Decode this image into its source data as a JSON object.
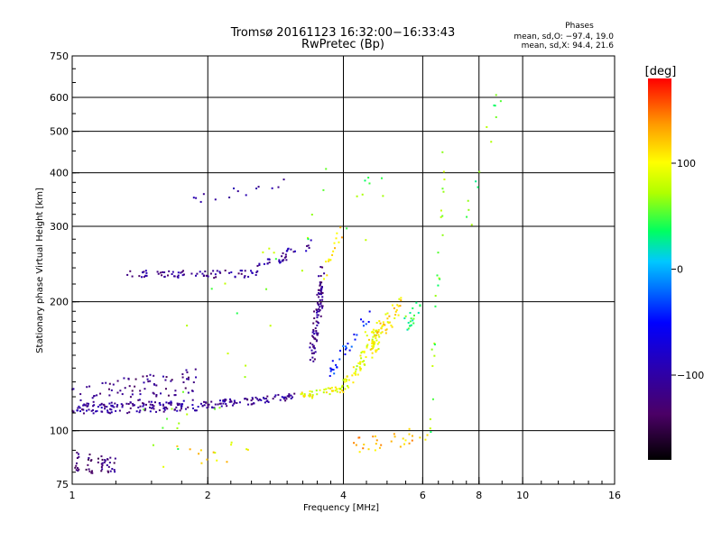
{
  "chart_data": {
    "type": "scatter",
    "title": "Tromsø 20161123 16:32:00−16:33:43",
    "subtitle": "RwPretec (Bp)",
    "phases": {
      "title": "Phases",
      "line_o": "mean, sd,O: −97.4, 19.0",
      "line_x": "mean, sd,X:  94.4, 21.6"
    },
    "xlabel": "Frequency [MHz]",
    "ylabel": "Stationary phase Virtual Height [km]",
    "x_scale": "log2",
    "y_scale": "log",
    "xlim": [
      1,
      16
    ],
    "ylim": [
      75,
      750
    ],
    "x_ticks": [
      1,
      2,
      4,
      6,
      8,
      10,
      16
    ],
    "x_tick_labels": [
      "1",
      "2",
      "4",
      "6",
      "8",
      "10",
      "16"
    ],
    "x_grid": [
      2,
      4,
      6,
      8,
      10
    ],
    "y_ticks": [
      75,
      100,
      200,
      300,
      400,
      500,
      600,
      750
    ],
    "y_tick_labels": [
      "75",
      "100",
      "200",
      "300",
      "400",
      "500",
      "600",
      "750"
    ],
    "y_grid": [
      100,
      200,
      300,
      400,
      500,
      600
    ],
    "grid": true,
    "colorbar": {
      "label": "[deg]",
      "range": [
        -180,
        180
      ],
      "ticks": [
        100,
        0,
        -100
      ],
      "tick_labels": [
        "100",
        "0",
        "−100"
      ]
    },
    "traces": [
      {
        "name": "",
        "from": [
          1.0,
          112
        ],
        "to": [
          2.0,
          115
        ],
        "spread": 0.03,
        "n": 140,
        "phase": -110
      },
      {
        "name": "",
        "from": [
          2.0,
          115
        ],
        "to": [
          3.1,
          120
        ],
        "spread": 0.02,
        "n": 80,
        "phase": -108
      },
      {
        "name": "",
        "from": [
          1.0,
          118
        ],
        "to": [
          1.9,
          132
        ],
        "spread": 0.07,
        "n": 90,
        "phase": -118
      },
      {
        "name": "",
        "from": [
          1.0,
          85
        ],
        "to": [
          1.25,
          82
        ],
        "spread": 0.05,
        "n": 50,
        "phase": -125
      },
      {
        "name": "",
        "from": [
          1.3,
          232
        ],
        "to": [
          2.5,
          232
        ],
        "spread": 0.02,
        "n": 70,
        "phase": -112
      },
      {
        "name": "",
        "from": [
          2.5,
          235
        ],
        "to": [
          3.4,
          275
        ],
        "spread": 0.03,
        "n": 40,
        "phase": -105
      },
      {
        "name": "",
        "from": [
          1.8,
          340
        ],
        "to": [
          3.0,
          385
        ],
        "spread": 0.03,
        "n": 14,
        "phase": -100
      },
      {
        "name": "",
        "from": [
          3.4,
          150
        ],
        "to": [
          3.6,
          230
        ],
        "spread": 0.09,
        "n": 90,
        "phase": -118
      },
      {
        "name": "",
        "from": [
          3.2,
          120
        ],
        "to": [
          4.0,
          125
        ],
        "spread": 0.02,
        "n": 45,
        "phase": 95
      },
      {
        "name": "",
        "from": [
          4.0,
          125
        ],
        "to": [
          4.8,
          165
        ],
        "spread": 0.05,
        "n": 70,
        "phase": 92
      },
      {
        "name": "",
        "from": [
          4.5,
          160
        ],
        "to": [
          5.4,
          195
        ],
        "spread": 0.06,
        "n": 60,
        "phase": 110
      },
      {
        "name": "",
        "from": [
          5.5,
          178
        ],
        "to": [
          5.9,
          195
        ],
        "spread": 0.04,
        "n": 20,
        "phase": 40
      },
      {
        "name": "",
        "from": [
          3.6,
          230
        ],
        "to": [
          4.0,
          300
        ],
        "spread": 0.05,
        "n": 16,
        "phase": 115
      },
      {
        "name": "",
        "from": [
          3.7,
          135
        ],
        "to": [
          4.6,
          190
        ],
        "spread": 0.05,
        "n": 30,
        "phase": -45
      },
      {
        "name": "",
        "from": [
          4.2,
          92
        ],
        "to": [
          6.2,
          98
        ],
        "spread": 0.05,
        "n": 30,
        "phase": 125
      },
      {
        "name": "",
        "from": [
          1.6,
          86
        ],
        "to": [
          2.5,
          90
        ],
        "spread": 0.06,
        "n": 15,
        "phase": 105
      },
      {
        "name": "",
        "from": [
          6.2,
          100
        ],
        "to": [
          6.7,
          400
        ],
        "spread": 0.12,
        "n": 25,
        "phase": 60
      },
      {
        "name": "",
        "from": [
          7.5,
          300
        ],
        "to": [
          9.0,
          620
        ],
        "spread": 0.1,
        "n": 14,
        "phase": 50
      },
      {
        "name": "",
        "from": [
          1.4,
          100
        ],
        "to": [
          5.0,
          420
        ],
        "spread": 0.35,
        "n": 40,
        "phase": 60
      }
    ]
  }
}
